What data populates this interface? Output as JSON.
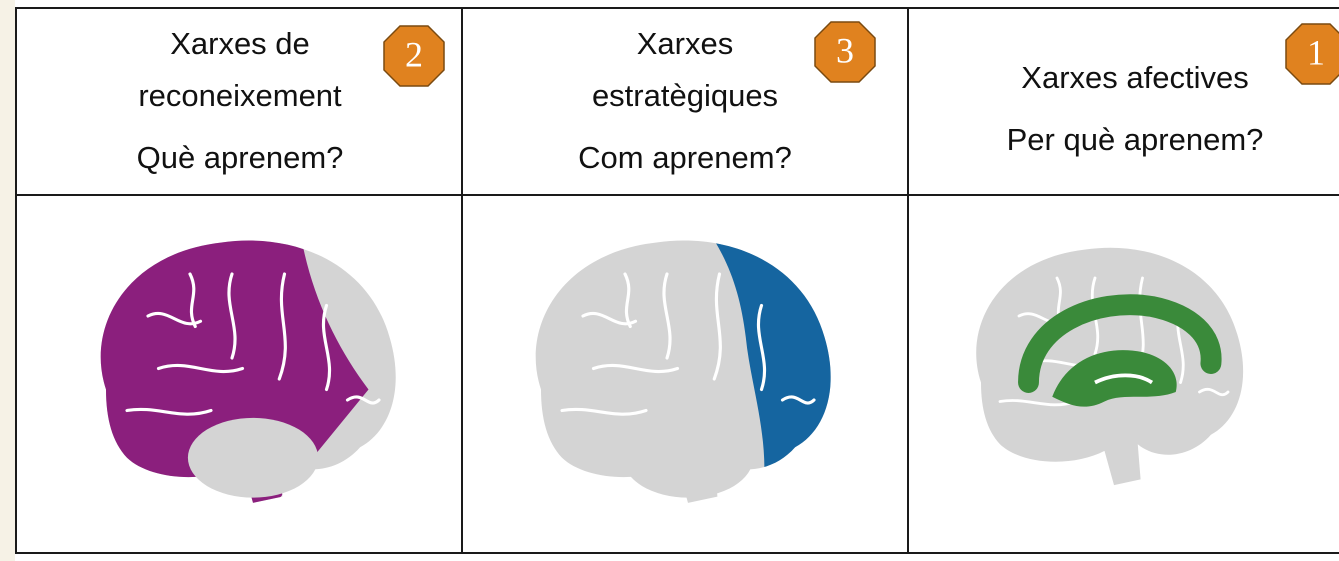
{
  "columns": [
    {
      "title": [
        "Xarxes de",
        "reconeixement"
      ],
      "question": "Què aprenem?",
      "badge": "2"
    },
    {
      "title": [
        "Xarxes",
        "estratègiques"
      ],
      "question": "Com aprenem?",
      "badge": "3"
    },
    {
      "title": [
        "Xarxes afectives"
      ],
      "question": "Per què aprenem?",
      "badge": "1"
    }
  ]
}
